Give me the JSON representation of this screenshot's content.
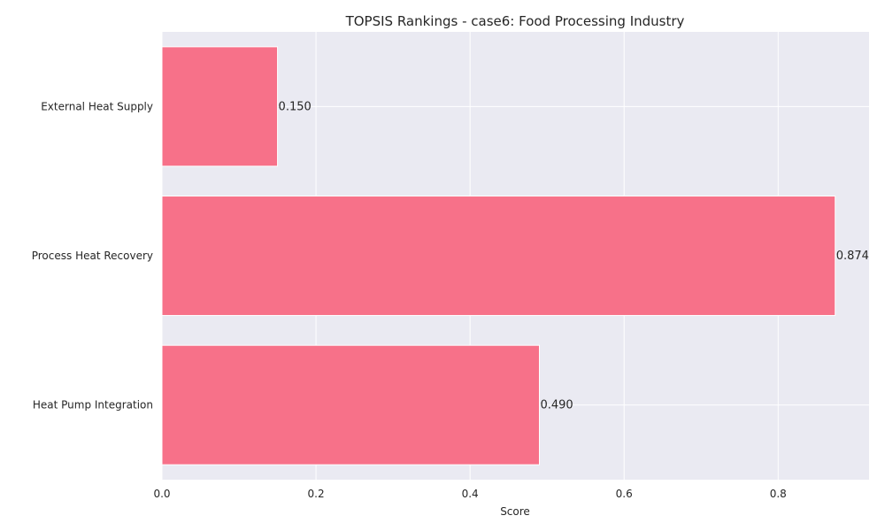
{
  "chart_data": {
    "type": "bar",
    "orientation": "horizontal",
    "title": "TOPSIS Rankings - case6: Food Processing Industry",
    "xlabel": "Score",
    "ylabel": "",
    "categories": [
      "Heat Pump Integration",
      "Process Heat Recovery",
      "External Heat Supply"
    ],
    "values": [
      0.49,
      0.874,
      0.15
    ],
    "value_labels": [
      "0.490",
      "0.874",
      "0.150"
    ],
    "xlim": [
      0,
      0.918
    ],
    "xticks": [
      0.0,
      0.2,
      0.4,
      0.6,
      0.8
    ],
    "xtick_labels": [
      "0.0",
      "0.2",
      "0.4",
      "0.6",
      "0.8"
    ],
    "grid": true,
    "colors": {
      "bar": "#f77189",
      "plot_background": "#eaeaf2",
      "grid": "#ffffff",
      "text": "#262626"
    }
  }
}
